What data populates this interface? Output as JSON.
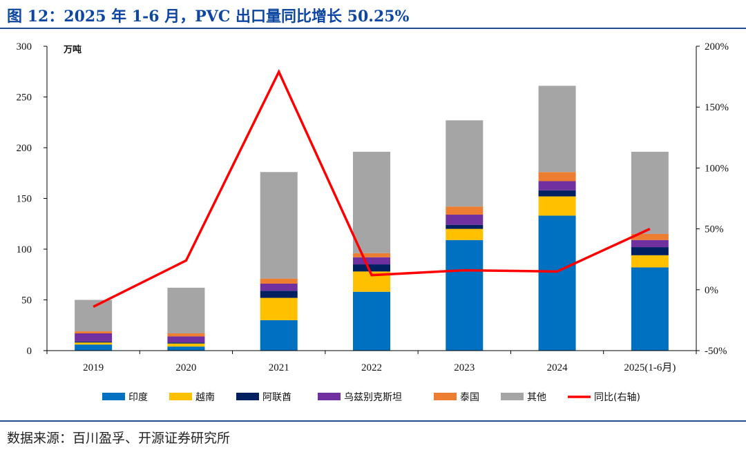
{
  "header": {
    "title": "图 12：2025 年 1-6 月，PVC 出口量同比增长 50.25%"
  },
  "footer": {
    "source": "数据来源：百川盈孚、开源证券研究所"
  },
  "chart_data": {
    "type": "bar",
    "stacked": true,
    "categories": [
      "2019",
      "2020",
      "2021",
      "2022",
      "2023",
      "2024",
      "2025(1-6月)"
    ],
    "unit_left": "万吨",
    "ylim_left": [
      0,
      300
    ],
    "yticks_left": [
      0,
      50,
      100,
      150,
      200,
      250,
      300
    ],
    "ylim_right": [
      -50,
      200
    ],
    "yticks_right": [
      -50,
      0,
      50,
      100,
      150,
      200
    ],
    "yticks_right_labels": [
      "-50%",
      "0%",
      "50%",
      "100%",
      "150%",
      "200%"
    ],
    "grid": false,
    "legend_position": "bottom",
    "series": [
      {
        "name": "印度",
        "color": "#0070c0",
        "values": [
          6,
          4,
          30,
          58,
          109,
          133,
          82
        ]
      },
      {
        "name": "越南",
        "color": "#ffc000",
        "values": [
          2,
          3,
          22,
          20,
          11,
          19,
          12
        ]
      },
      {
        "name": "阿联酋",
        "color": "#002060",
        "values": [
          1,
          1,
          7,
          7,
          4,
          6,
          8
        ]
      },
      {
        "name": "乌兹别克斯坦",
        "color": "#7030a0",
        "values": [
          8,
          6,
          7,
          7,
          10,
          9,
          7
        ]
      },
      {
        "name": "泰国",
        "color": "#ed7d31",
        "values": [
          2,
          3,
          5,
          4,
          8,
          9,
          6
        ]
      },
      {
        "name": "其他",
        "color": "#a5a5a5",
        "values": [
          31,
          45,
          105,
          100,
          85,
          85,
          81
        ]
      }
    ],
    "line": {
      "name": "同比(右轴)",
      "color": "#ff0000",
      "axis": "right",
      "values": [
        -14,
        24,
        179,
        12,
        16,
        15,
        50
      ]
    }
  }
}
